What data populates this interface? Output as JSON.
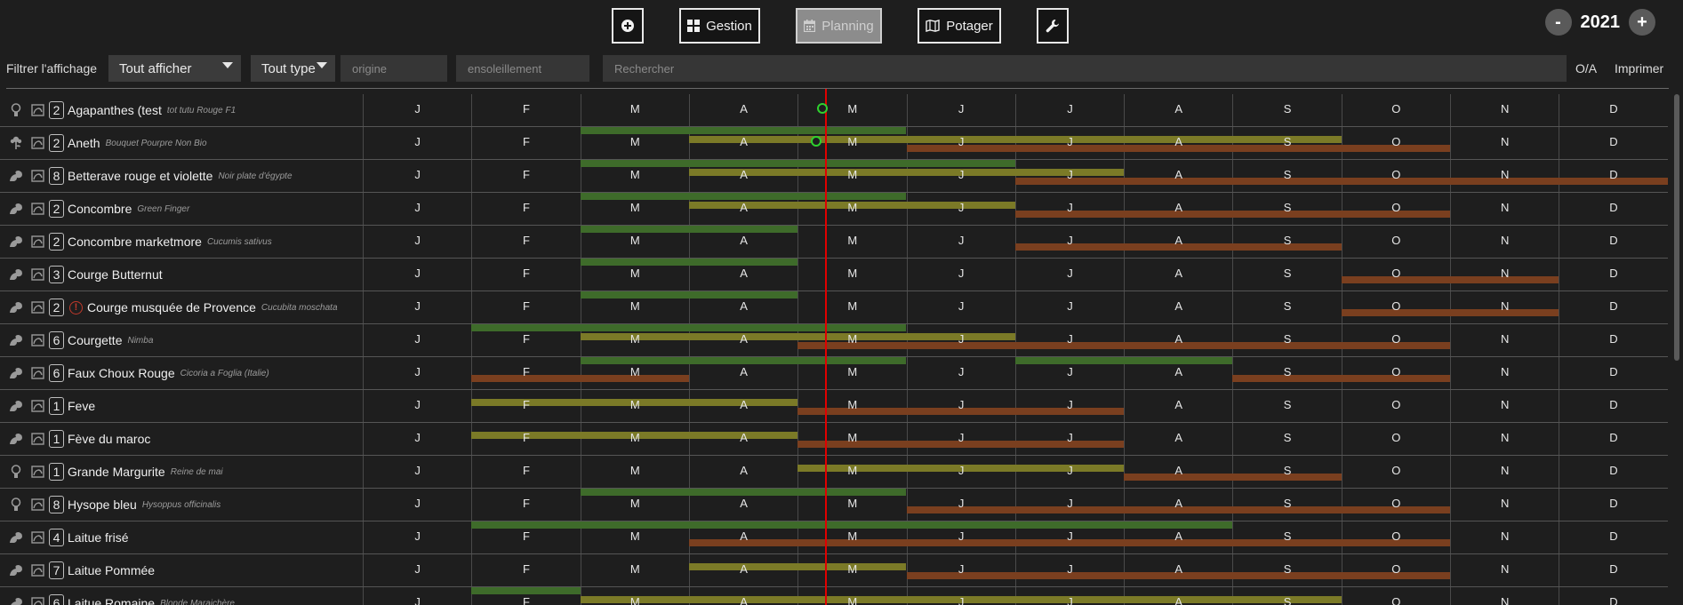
{
  "toolbar": {
    "add_label": "",
    "gestion_label": "Gestion",
    "planning_label": "Planning",
    "potager_label": "Potager",
    "year": "2021",
    "minus": "-",
    "plus": "+"
  },
  "filters": {
    "label": "Filtrer l'affichage",
    "display_select": "Tout afficher",
    "type_select": "Tout type",
    "origin_placeholder": "origine",
    "sun_placeholder": "ensoleillement",
    "search_placeholder": "Rechercher",
    "oa_label": "O/A",
    "print_label": "Imprimer"
  },
  "months": [
    "J",
    "F",
    "M",
    "A",
    "M",
    "J",
    "J",
    "A",
    "S",
    "O",
    "N",
    "D"
  ],
  "colors": {
    "sowing": "#3e6b2a",
    "planting": "#7b7a27",
    "harvest": "#7a3f1f",
    "today_line": "#e10000",
    "marker": "#2ed12e"
  },
  "rows": [
    {
      "icon": "bulb-icon",
      "count": "2",
      "name": "Agapanthes (test",
      "sub": "tot tutu Rouge F1",
      "warn": false,
      "bars": [],
      "marker": [
        4.23,
        0.45
      ]
    },
    {
      "icon": "flower-icon",
      "count": "2",
      "name": "Aneth",
      "sub": "Bouquet Pourpre Non Bio",
      "warn": false,
      "bars": [
        {
          "t": "sowing",
          "s": 2,
          "e": 5,
          "l": 0
        },
        {
          "t": "planting",
          "s": 3,
          "e": 9,
          "l": 1
        },
        {
          "t": "harvest",
          "s": 5,
          "e": 10,
          "l": 2
        }
      ],
      "marker": [
        4.17,
        0.45
      ]
    },
    {
      "icon": "plant-icon",
      "count": "8",
      "name": "Betterave rouge et violette",
      "sub": "Noir plate d'égypte",
      "warn": false,
      "bars": [
        {
          "t": "sowing",
          "s": 2,
          "e": 6,
          "l": 0
        },
        {
          "t": "planting",
          "s": 3,
          "e": 7,
          "l": 1
        },
        {
          "t": "harvest",
          "s": 6,
          "e": 12,
          "l": 2
        }
      ]
    },
    {
      "icon": "plant-icon",
      "count": "2",
      "name": "Concombre",
      "sub": "Green Finger",
      "warn": false,
      "bars": [
        {
          "t": "sowing",
          "s": 2,
          "e": 5,
          "l": 0
        },
        {
          "t": "planting",
          "s": 3,
          "e": 6,
          "l": 1
        },
        {
          "t": "harvest",
          "s": 6,
          "e": 10,
          "l": 2
        }
      ]
    },
    {
      "icon": "plant-icon",
      "count": "2",
      "name": "Concombre marketmore",
      "sub": "Cucumis sativus",
      "warn": false,
      "bars": [
        {
          "t": "sowing",
          "s": 2,
          "e": 4,
          "l": 0
        },
        {
          "t": "harvest",
          "s": 6,
          "e": 9,
          "l": 2
        }
      ]
    },
    {
      "icon": "plant-icon",
      "count": "3",
      "name": "Courge Butternut",
      "sub": "",
      "warn": false,
      "bars": [
        {
          "t": "sowing",
          "s": 2,
          "e": 4,
          "l": 0
        },
        {
          "t": "harvest",
          "s": 9,
          "e": 11,
          "l": 2
        }
      ]
    },
    {
      "icon": "plant-icon",
      "count": "2",
      "name": "Courge musquée de Provence",
      "sub": "Cucubita moschata",
      "warn": true,
      "warn_symbol": "!",
      "bars": [
        {
          "t": "sowing",
          "s": 2,
          "e": 4,
          "l": 0
        },
        {
          "t": "harvest",
          "s": 9,
          "e": 11,
          "l": 2
        }
      ]
    },
    {
      "icon": "plant-icon",
      "count": "6",
      "name": "Courgette",
      "sub": "Nimba",
      "warn": false,
      "bars": [
        {
          "t": "sowing",
          "s": 1,
          "e": 5,
          "l": 0
        },
        {
          "t": "planting",
          "s": 2,
          "e": 6,
          "l": 1
        },
        {
          "t": "harvest",
          "s": 4,
          "e": 10,
          "l": 2
        }
      ]
    },
    {
      "icon": "plant-icon",
      "count": "6",
      "name": "Faux Choux Rouge",
      "sub": "Cicoria a Foglia (Italie)",
      "warn": false,
      "bars": [
        {
          "t": "sowing",
          "s": 2,
          "e": 5,
          "l": 0
        },
        {
          "t": "sowing",
          "s": 6,
          "e": 8,
          "l": 0
        },
        {
          "t": "harvest",
          "s": 1,
          "e": 3,
          "l": 2
        },
        {
          "t": "harvest",
          "s": 8,
          "e": 10,
          "l": 2
        }
      ]
    },
    {
      "icon": "plant-icon",
      "count": "1",
      "name": "Feve",
      "sub": "",
      "warn": false,
      "bars": [
        {
          "t": "planting",
          "s": 1,
          "e": 4,
          "l": 1
        },
        {
          "t": "harvest",
          "s": 4,
          "e": 7,
          "l": 2
        }
      ]
    },
    {
      "icon": "plant-icon",
      "count": "1",
      "name": "Fève du maroc",
      "sub": "",
      "warn": false,
      "bars": [
        {
          "t": "planting",
          "s": 1,
          "e": 4,
          "l": 1
        },
        {
          "t": "harvest",
          "s": 4,
          "e": 7,
          "l": 2
        }
      ]
    },
    {
      "icon": "bulb-icon",
      "count": "1",
      "name": "Grande Margurite",
      "sub": "Reine de mai",
      "warn": false,
      "bars": [
        {
          "t": "planting",
          "s": 4,
          "e": 7,
          "l": 1
        },
        {
          "t": "harvest",
          "s": 7,
          "e": 9,
          "l": 2
        }
      ]
    },
    {
      "icon": "bulb-icon",
      "count": "8",
      "name": "Hysope bleu",
      "sub": "Hysoppus officinalis",
      "warn": false,
      "bars": [
        {
          "t": "sowing",
          "s": 2,
          "e": 5,
          "l": 0
        },
        {
          "t": "harvest",
          "s": 5,
          "e": 10,
          "l": 2
        }
      ]
    },
    {
      "icon": "plant-icon",
      "count": "4",
      "name": "Laitue frisé",
      "sub": "",
      "warn": false,
      "bars": [
        {
          "t": "sowing",
          "s": 1,
          "e": 8,
          "l": 0
        },
        {
          "t": "harvest",
          "s": 3,
          "e": 10,
          "l": 2
        }
      ]
    },
    {
      "icon": "plant-icon",
      "count": "7",
      "name": "Laitue Pommée",
      "sub": "",
      "warn": false,
      "bars": [
        {
          "t": "planting",
          "s": 3,
          "e": 5,
          "l": 1
        },
        {
          "t": "harvest",
          "s": 5,
          "e": 10,
          "l": 2
        }
      ]
    },
    {
      "icon": "plant-icon",
      "count": "6",
      "name": "Laitue Romaine",
      "sub": "Blonde Maraichère",
      "warn": false,
      "bars": [
        {
          "t": "sowing",
          "s": 1,
          "e": 2,
          "l": 0
        },
        {
          "t": "planting",
          "s": 2,
          "e": 9,
          "l": 1
        }
      ]
    }
  ]
}
